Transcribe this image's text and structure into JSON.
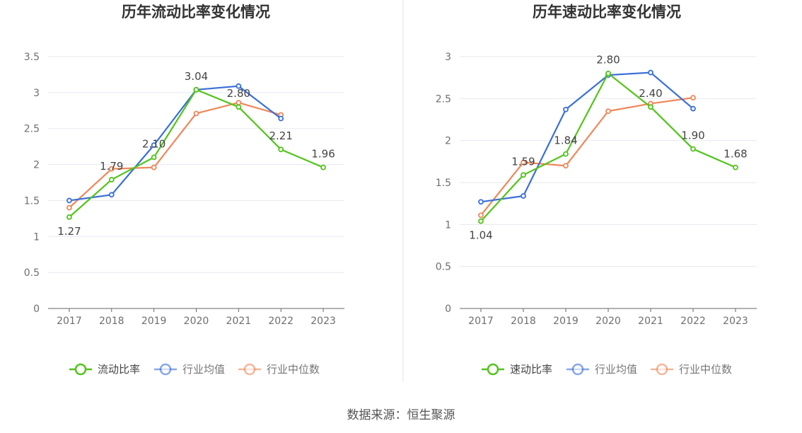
{
  "source_text": "数据来源：恒生聚源",
  "colors": {
    "company": "#52c41a",
    "industry_avg": "#3a6fd8",
    "industry_median": "#f0875a",
    "grid": "#e5e8ee",
    "axis": "#666666",
    "divider": "#e6e6e6"
  },
  "chart_data": [
    {
      "type": "line",
      "title": "历年流动比率变化情况",
      "categories": [
        "2017",
        "2018",
        "2019",
        "2020",
        "2021",
        "2022",
        "2023"
      ],
      "ylim": [
        0,
        3.5
      ],
      "yticks": [
        "0",
        "0.5",
        "1",
        "1.5",
        "2",
        "2.5",
        "3",
        "3.5"
      ],
      "grid": true,
      "legend_position": "bottom",
      "series": [
        {
          "name": "流动比率",
          "key": "company",
          "values": [
            1.27,
            1.79,
            2.1,
            3.04,
            2.8,
            2.21,
            1.96
          ],
          "labels": [
            "1.27",
            "1.79",
            "2.10",
            "3.04",
            "2.80",
            "2.21",
            "1.96"
          ]
        },
        {
          "name": "行业均值",
          "key": "industry_avg",
          "values": [
            1.5,
            1.58,
            2.27,
            3.04,
            3.09,
            2.64,
            null
          ]
        },
        {
          "name": "行业中位数",
          "key": "industry_median",
          "values": [
            1.4,
            1.94,
            1.96,
            2.71,
            2.86,
            2.69,
            null
          ]
        }
      ]
    },
    {
      "type": "line",
      "title": "历年速动比率变化情况",
      "categories": [
        "2017",
        "2018",
        "2019",
        "2020",
        "2021",
        "2022",
        "2023"
      ],
      "ylim": [
        0,
        3
      ],
      "yticks": [
        "0",
        "0.5",
        "1",
        "1.5",
        "2",
        "2.5",
        "3"
      ],
      "grid": true,
      "legend_position": "bottom",
      "series": [
        {
          "name": "速动比率",
          "key": "company",
          "values": [
            1.04,
            1.59,
            1.84,
            2.8,
            2.4,
            1.9,
            1.68
          ],
          "labels": [
            "1.04",
            "1.59",
            "1.84",
            "2.80",
            "2.40",
            "1.90",
            "1.68"
          ]
        },
        {
          "name": "行业均值",
          "key": "industry_avg",
          "values": [
            1.27,
            1.34,
            2.37,
            2.78,
            2.81,
            2.38,
            null
          ]
        },
        {
          "name": "行业中位数",
          "key": "industry_median",
          "values": [
            1.11,
            1.74,
            1.7,
            2.35,
            2.44,
            2.51,
            null
          ]
        }
      ]
    }
  ]
}
